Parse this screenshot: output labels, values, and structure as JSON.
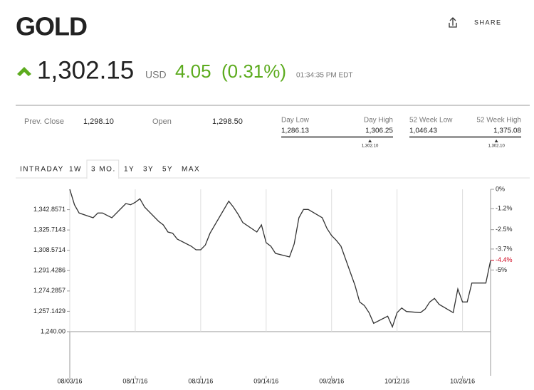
{
  "header": {
    "title": "GOLD",
    "share": "SHARE"
  },
  "quote": {
    "price": "1,302.15",
    "currency": "USD",
    "change": "4.05",
    "change_percent": "(0.31%)",
    "time": "01:34:35 PM EDT",
    "color": "#5cab1e"
  },
  "stats": {
    "prev_close": {
      "label": "Prev. Close",
      "value": "1,298.10"
    },
    "open": {
      "label": "Open",
      "value": "1,298.50"
    },
    "day_range": {
      "low_label": "Day Low",
      "high_label": "Day High",
      "low": "1,286.13",
      "high": "1,306.25",
      "marker": "1,302.10"
    },
    "week52_range": {
      "low_label": "52 Week Low",
      "high_label": "52 Week High",
      "low": "1,046.43",
      "high": "1,375.08",
      "marker": "1,302.10"
    }
  },
  "tabs": [
    "INTRADAY",
    "1W",
    "3 MO.",
    "1Y",
    "3Y",
    "5Y",
    "MAX"
  ],
  "active_tab": 2,
  "chart_data": {
    "type": "line",
    "x": [
      "08/03/16",
      "08/04/16",
      "08/05/16",
      "08/08/16",
      "08/09/16",
      "08/10/16",
      "08/11/16",
      "08/12/16",
      "08/15/16",
      "08/16/16",
      "08/17/16",
      "08/18/16",
      "08/19/16",
      "08/22/16",
      "08/23/16",
      "08/24/16",
      "08/25/16",
      "08/26/16",
      "08/29/16",
      "08/30/16",
      "08/31/16",
      "09/01/16",
      "09/02/16",
      "09/06/16",
      "09/07/16",
      "09/08/16",
      "09/09/16",
      "09/12/16",
      "09/13/16",
      "09/14/16",
      "09/15/16",
      "09/16/16",
      "09/19/16",
      "09/20/16",
      "09/21/16",
      "09/22/16",
      "09/23/16",
      "09/26/16",
      "09/27/16",
      "09/28/16",
      "09/29/16",
      "09/30/16",
      "10/03/16",
      "10/04/16",
      "10/05/16",
      "10/06/16",
      "10/07/16",
      "10/10/16",
      "10/11/16",
      "10/12/16",
      "10/13/16",
      "10/14/16",
      "10/17/16",
      "10/18/16",
      "10/19/16",
      "10/20/16",
      "10/21/16",
      "10/24/16",
      "10/25/16",
      "10/26/16",
      "10/27/16",
      "10/28/16",
      "10/31/16",
      "11/01/16"
    ],
    "series": [
      {
        "color": "#333333",
        "values": [
          1360,
          1347,
          1340,
          1336,
          1340,
          1340,
          1338,
          1336,
          1348,
          1347,
          1349,
          1352,
          1345,
          1333,
          1330,
          1324,
          1323,
          1318,
          1312,
          1309,
          1309,
          1313,
          1323,
          1350,
          1345,
          1339,
          1332,
          1324,
          1330,
          1315,
          1312,
          1306,
          1303,
          1314,
          1336,
          1343,
          1343,
          1336,
          1327,
          1321,
          1317,
          1312,
          1279,
          1265,
          1262,
          1256,
          1247,
          1253,
          1244,
          1256,
          1260,
          1257,
          1256,
          1259,
          1265,
          1268,
          1263,
          1256,
          1276,
          1265,
          1265,
          1281,
          1281,
          1300
        ]
      }
    ],
    "xlim": [
      "08/03/16",
      "11/01/16"
    ],
    "xticks": [
      "08/03/16",
      "08/17/16",
      "08/31/16",
      "09/14/16",
      "09/28/16",
      "10/12/16",
      "10/26/16"
    ],
    "ylim": [
      1240,
      1360
    ],
    "yticks": [
      {
        "value": 1240,
        "label": "1,240.00"
      },
      {
        "value": 1257.1429,
        "label": "1,257.1429"
      },
      {
        "value": 1274.2857,
        "label": "1,274.2857"
      },
      {
        "value": 1291.4286,
        "label": "1,291.4286"
      },
      {
        "value": 1308.5714,
        "label": "1,308.5714"
      },
      {
        "value": 1325.7143,
        "label": "1,325.7143"
      },
      {
        "value": 1342.8571,
        "label": "1,342.8571"
      }
    ],
    "y2lim": [
      -8.82,
      0
    ],
    "y2ticks": [
      {
        "value": 0,
        "label": "0%"
      },
      {
        "value": -1.2,
        "label": "-1.2%"
      },
      {
        "value": -2.5,
        "label": "-2.5%"
      },
      {
        "value": -3.7,
        "label": "-3.7%"
      },
      {
        "value": -4.4,
        "label": "-4.4%",
        "color": "#d0021b"
      },
      {
        "value": -5,
        "label": "-5%"
      }
    ],
    "grid": true
  }
}
